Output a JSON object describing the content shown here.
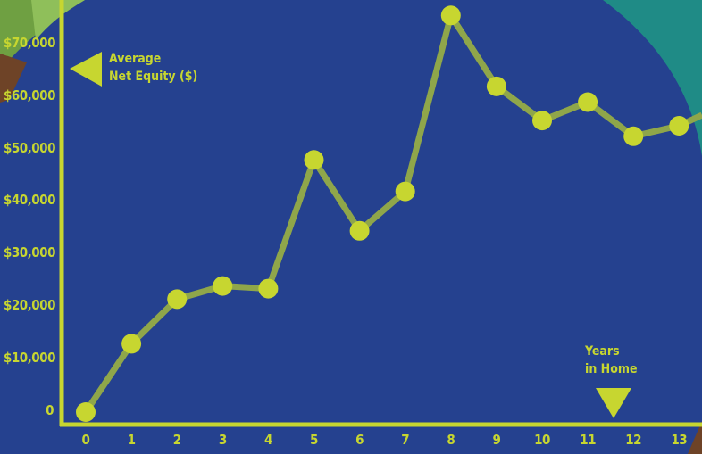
{
  "chart_data": {
    "type": "line",
    "ylabel": "Average Net Equity ($)",
    "xlabel": "Years in Home",
    "ylabel_lines": [
      "Average",
      "Net Equity ($)"
    ],
    "xlabel_lines": [
      "Years",
      "in Home"
    ],
    "x": [
      0,
      1,
      2,
      3,
      4,
      5,
      6,
      7,
      8,
      9,
      10,
      11,
      12,
      13
    ],
    "y_tick_labels": [
      "0",
      "$10,000",
      "$20,000",
      "$30,000",
      "$40,000",
      "$50,000",
      "$60,000",
      "$70,000"
    ],
    "y_ticks": [
      0,
      10000,
      20000,
      30000,
      40000,
      50000,
      60000,
      70000
    ],
    "series": [
      {
        "x": [
          0,
          1,
          2,
          3,
          4,
          5,
          6,
          7,
          8,
          9,
          10,
          11,
          12,
          13
        ],
        "values": [
          0,
          13000,
          21500,
          24000,
          23500,
          48000,
          34500,
          42000,
          75500,
          62000,
          55500,
          59000,
          52500,
          54500
        ]
      }
    ],
    "ylim": [
      0,
      70000
    ],
    "xlim": [
      0,
      13
    ],
    "grid": false,
    "colors": {
      "background": "#25418f",
      "accent": "#c7d630",
      "line": "#8fa64a",
      "marker": "#c7d630",
      "teal": "#1f8b86",
      "green": "#6fa042",
      "brown": "#6e4327"
    }
  }
}
